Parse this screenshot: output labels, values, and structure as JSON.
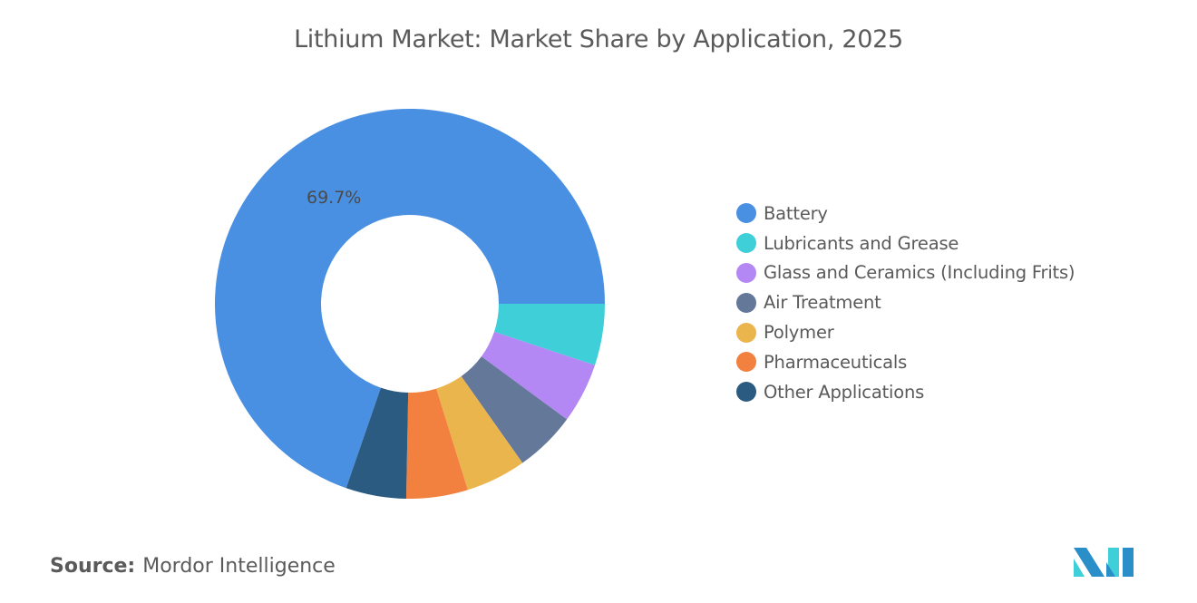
{
  "chart_data": {
    "type": "pie",
    "donut": true,
    "title": "Lithium Market: Market Share by Application, 2025",
    "categories": [
      "Battery",
      "Lubricants and Grease",
      "Glass and Ceramics (Including Frits)",
      "Air Treatment",
      "Polymer",
      "Pharmaceuticals",
      "Other Applications"
    ],
    "values": [
      69.7,
      5.1,
      5.0,
      5.1,
      5.0,
      5.1,
      5.0
    ],
    "colors": [
      "#4a90e2",
      "#3ecfd9",
      "#b388f5",
      "#64789a",
      "#ebb54e",
      "#f2803f",
      "#2b5b80"
    ],
    "data_labels": [
      {
        "category": "Battery",
        "text": "69.7%"
      }
    ],
    "legend_position": "right"
  },
  "source": {
    "label": "Source:",
    "value": "Mordor Intelligence"
  }
}
